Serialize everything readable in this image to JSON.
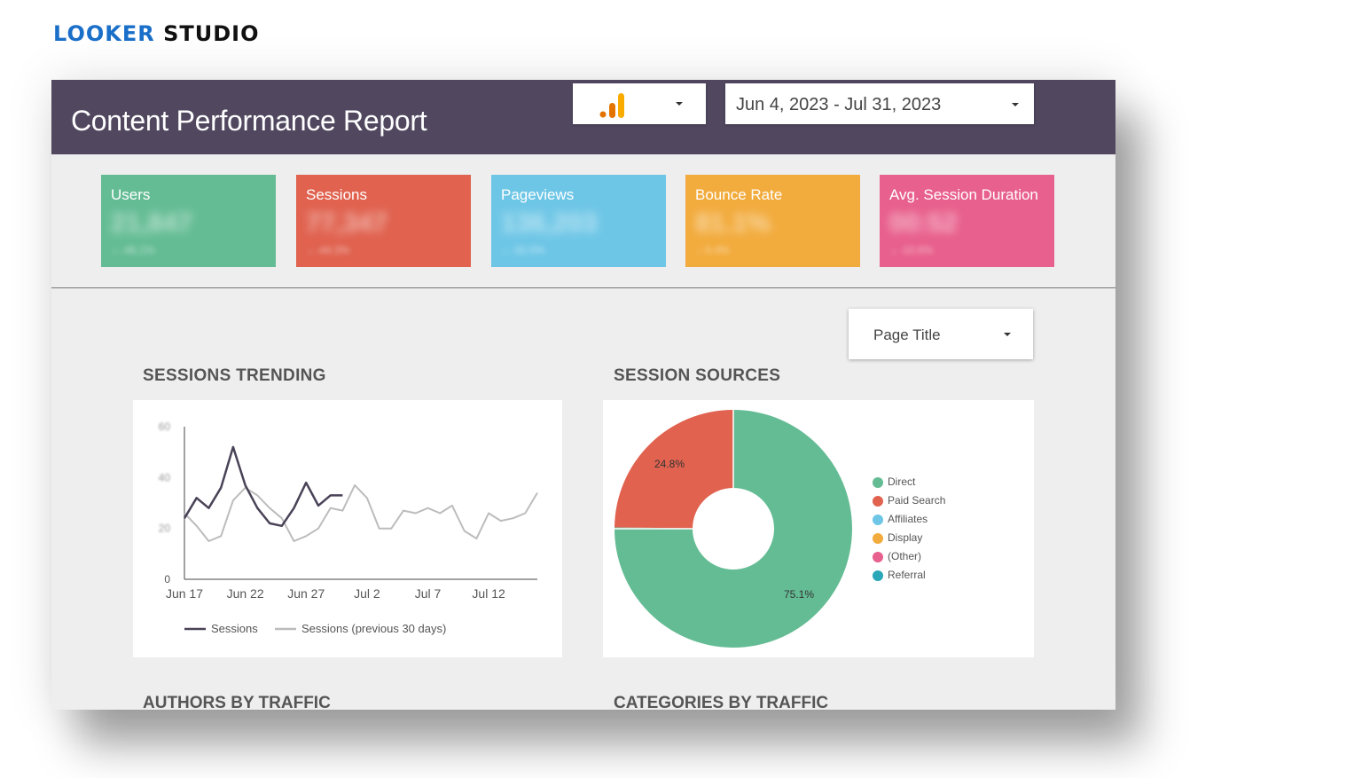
{
  "brand": {
    "part1": "LOOKER",
    "part2": "STUDIO"
  },
  "report": {
    "title": "Content Performance Report"
  },
  "controls": {
    "data_source_icon": "google-analytics-icon",
    "date_range": "Jun 4, 2023 - Jul 31, 2023",
    "dimension": "Page Title"
  },
  "kpis": [
    {
      "label": "Users",
      "value": "21,847",
      "delta": "↓ -46.1%",
      "color": "#64bc94"
    },
    {
      "label": "Sessions",
      "value": "77,347",
      "delta": "↓ -44.3%",
      "color": "#e0624f"
    },
    {
      "label": "Pageviews",
      "value": "136,203",
      "delta": "↓ -32.0%",
      "color": "#6ec6e6"
    },
    {
      "label": "Bounce Rate",
      "value": "81.1%",
      "delta": "↓ 5.4%",
      "color": "#f2ab3d"
    },
    {
      "label": "Avg. Session Duration",
      "value": "00:52",
      "delta": "↓ -10.6%",
      "color": "#e8608d"
    }
  ],
  "sections": {
    "sessions_trending": "SESSIONS TRENDING",
    "session_sources": "SESSION SOURCES",
    "authors_by_traffic": "AUTHORS BY TRAFFIC",
    "categories_by_traffic": "CATEGORIES BY TRAFFIC"
  },
  "chart_data": [
    {
      "type": "line",
      "title": "SESSIONS TRENDING",
      "x_ticks": [
        "Jun 17",
        "Jun 22",
        "Jun 27",
        "Jul 2",
        "Jul 7",
        "Jul 12"
      ],
      "y_ticks": [
        "0",
        "20",
        "40",
        "60"
      ],
      "ylim": [
        0,
        60
      ],
      "series": [
        {
          "name": "Sessions",
          "color": "#4a4257",
          "x": [
            0,
            1,
            2,
            3,
            4,
            5,
            6,
            7,
            8,
            9,
            10,
            11,
            12,
            13
          ],
          "values": [
            24,
            32,
            28,
            36,
            52,
            37,
            28,
            22,
            21,
            28,
            38,
            29,
            33,
            33
          ]
        },
        {
          "name": "Sessions (previous 30 days)",
          "color": "#bcbcbc",
          "x": [
            0,
            1,
            2,
            3,
            4,
            5,
            6,
            7,
            8,
            9,
            10,
            11,
            12,
            13,
            14,
            15,
            16,
            17,
            18,
            19,
            20,
            21,
            22,
            23,
            24,
            25,
            26,
            27,
            28,
            29
          ],
          "values": [
            26,
            21,
            15,
            17,
            31,
            36,
            33,
            28,
            24,
            15,
            17,
            20,
            28,
            27,
            37,
            32,
            20,
            20,
            27,
            26,
            28,
            26,
            29,
            19,
            16,
            26,
            23,
            24,
            26,
            34
          ]
        }
      ]
    },
    {
      "type": "pie",
      "title": "SESSION SOURCES",
      "slices": [
        {
          "label": "Direct",
          "value": 75.1,
          "color": "#64bc94"
        },
        {
          "label": "Paid Search",
          "value": 24.8,
          "color": "#e0624f"
        },
        {
          "label": "Affiliates",
          "value": 0,
          "color": "#6ec6e6"
        },
        {
          "label": "Display",
          "value": 0,
          "color": "#f2ab3d"
        },
        {
          "label": "(Other)",
          "value": 0,
          "color": "#e8608d"
        },
        {
          "label": "Referral",
          "value": 0,
          "color": "#2aa7b8"
        }
      ],
      "data_labels": [
        "75.1%",
        "24.8%"
      ],
      "legend": "right"
    }
  ]
}
